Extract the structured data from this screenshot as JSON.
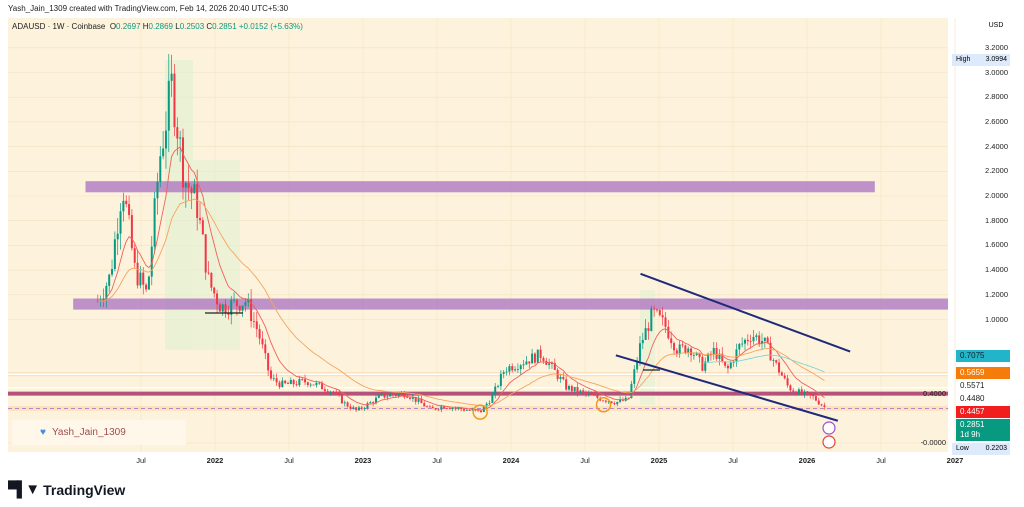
{
  "header": {
    "credit": "Yash_Jain_1309 created with TradingView.com, Feb 14, 2026 20:40 UTC+5:30"
  },
  "legend": {
    "symbol": "ADAUSD · 1W · Coinbase",
    "o_label": "O",
    "o": "0.2697",
    "h_label": "H",
    "h": "0.2869",
    "l_label": "L",
    "l": "0.2503",
    "c_label": "C",
    "c": "0.2851",
    "change": "+0.0152 (+5.63%)"
  },
  "currency": "USD",
  "watermark": "Yash_Jain_1309",
  "logo_text": "TradingView",
  "colors": {
    "bg": "#fdf3dc",
    "up": "#089981",
    "down": "#f23645",
    "zone": "#b37fc4",
    "trend": "#1f2a7a",
    "ema_fast": "#f0605a",
    "ema_slow": "#f7a35c",
    "ema_long": "#7fd3d0"
  },
  "chart_data": {
    "type": "candlestick",
    "title": "ADAUSD · 1W · Coinbase",
    "ylim": [
      -0.05,
      3.3
    ],
    "y_ticks": [
      "3.2000",
      "3.0000",
      "2.8000",
      "2.6000",
      "2.4000",
      "2.2000",
      "2.0000",
      "1.8000",
      "1.6000",
      "1.4000",
      "1.2000",
      "1.0000",
      "0.4000",
      "-0.0000"
    ],
    "y_tick_values": [
      3.2,
      3.0,
      2.8,
      2.6,
      2.4,
      2.2,
      2.0,
      1.8,
      1.6,
      1.4,
      1.2,
      1.0,
      0.4,
      0
    ],
    "x_ticks": [
      {
        "label": "Jul",
        "date": 2021.5
      },
      {
        "label": "2022",
        "date": 2022
      },
      {
        "label": "Jul",
        "date": 2022.5
      },
      {
        "label": "2023",
        "date": 2023
      },
      {
        "label": "Jul",
        "date": 2023.5
      },
      {
        "label": "2024",
        "date": 2024
      },
      {
        "label": "Jul",
        "date": 2024.5
      },
      {
        "label": "2025",
        "date": 2025
      },
      {
        "label": "Jul",
        "date": 2025.5
      },
      {
        "label": "2026",
        "date": 2026
      },
      {
        "label": "Jul",
        "date": 2026.5
      },
      {
        "label": "2027",
        "date": 2027
      }
    ],
    "closes": [
      [
        "2021-03",
        1.15
      ],
      [
        "2021-04",
        1.35
      ],
      [
        "2021-05",
        2.1
      ],
      [
        "2021-06",
        1.4
      ],
      [
        "2021-07",
        1.2
      ],
      [
        "2021-08",
        2.3
      ],
      [
        "2021-09",
        2.9
      ],
      [
        "2021-10",
        2.15
      ],
      [
        "2021-11",
        1.95
      ],
      [
        "2021-12",
        1.3
      ],
      [
        "2022-01",
        1.1
      ],
      [
        "2022-03",
        1.15
      ],
      [
        "2022-04",
        0.9
      ],
      [
        "2022-05",
        0.52
      ],
      [
        "2022-06",
        0.47
      ],
      [
        "2022-08",
        0.5
      ],
      [
        "2022-10",
        0.42
      ],
      [
        "2022-11",
        0.32
      ],
      [
        "2022-12",
        0.26
      ],
      [
        "2023-02",
        0.38
      ],
      [
        "2023-04",
        0.4
      ],
      [
        "2023-06",
        0.27
      ],
      [
        "2023-07",
        0.3
      ],
      [
        "2023-10",
        0.25
      ],
      [
        "2023-11",
        0.38
      ],
      [
        "2023-12",
        0.6
      ],
      [
        "2024-03",
        0.72
      ],
      [
        "2024-05",
        0.45
      ],
      [
        "2024-07",
        0.38
      ],
      [
        "2024-09",
        0.33
      ],
      [
        "2024-10",
        0.35
      ],
      [
        "2024-11",
        0.8
      ],
      [
        "2024-12",
        1.05
      ],
      [
        "2025-01",
        0.95
      ],
      [
        "2025-02",
        0.75
      ],
      [
        "2025-03",
        0.78
      ],
      [
        "2025-04",
        0.62
      ],
      [
        "2025-05",
        0.75
      ],
      [
        "2025-06",
        0.58
      ],
      [
        "2025-07",
        0.78
      ],
      [
        "2025-08",
        0.88
      ],
      [
        "2025-09",
        0.82
      ],
      [
        "2025-10",
        0.63
      ],
      [
        "2025-11",
        0.45
      ],
      [
        "2025-12",
        0.4
      ],
      [
        "2026-01",
        0.37
      ],
      [
        "2026-02",
        0.2851
      ]
    ],
    "zones": [
      {
        "from": "2021-02",
        "to": "2026-06",
        "low": 2.03,
        "high": 2.12
      },
      {
        "from": "2021-01",
        "to": "2027-01",
        "low": 1.08,
        "high": 1.17
      }
    ],
    "levels": [
      {
        "price": 0.4,
        "color": "#b5527a"
      },
      {
        "price": 0.5571,
        "color": "#ffffff"
      },
      {
        "price": 0.448,
        "color": "#ffffff"
      }
    ],
    "trendlines": [
      {
        "start": [
          "2024-11",
          1.37
        ],
        "end": [
          "2026-04",
          0.74
        ]
      },
      {
        "start": [
          "2024-09",
          0.71
        ],
        "end": [
          "2026-03",
          0.18
        ]
      }
    ],
    "circles": [
      [
        "2023-10",
        0.25
      ],
      [
        "2024-08",
        0.31
      ]
    ],
    "high": {
      "label": "High",
      "value": "3.0994"
    },
    "low": {
      "label": "Low",
      "value": "0.2203"
    },
    "badges": [
      {
        "value": "0.7075",
        "bg": "#22b5c9",
        "fg": "#10202a",
        "price": 0.7075
      },
      {
        "value": "0.5659",
        "bg": "#f57c0a",
        "fg": "#fff",
        "price": 0.5659
      },
      {
        "value": "0.5571",
        "bg": "#ffffff",
        "fg": "#222",
        "price": 0.5571
      },
      {
        "value": "0.4480",
        "bg": "#ffffff",
        "fg": "#222",
        "price": 0.448
      },
      {
        "value": "0.4457",
        "bg": "#f21d1d",
        "fg": "#fff",
        "price": 0.4457
      },
      {
        "value": "0.2851",
        "bg": "#089981",
        "fg": "#fff",
        "price": 0.2851,
        "sub": "1d 9h"
      }
    ]
  }
}
